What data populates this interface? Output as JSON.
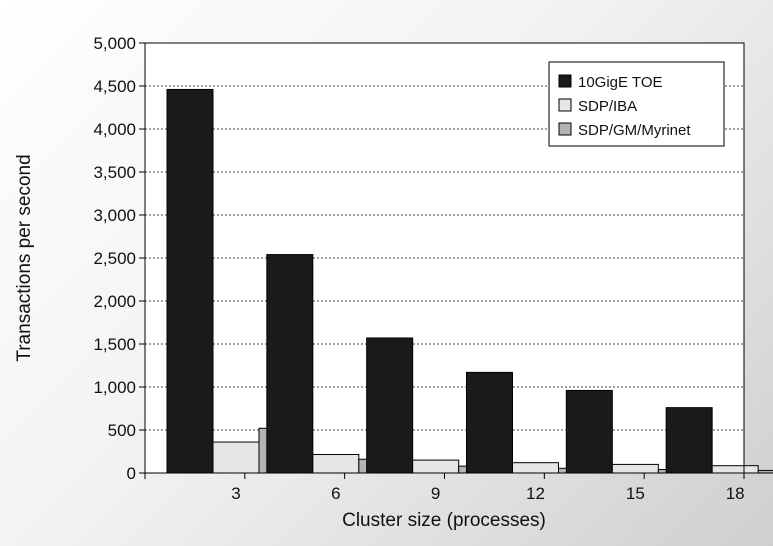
{
  "chart_data": {
    "type": "bar",
    "categories": [
      "3",
      "6",
      "9",
      "12",
      "15",
      "18"
    ],
    "series": [
      {
        "name": "10GigE TOE",
        "color": "#1a1a1a",
        "values": [
          4460,
          2540,
          1570,
          1170,
          960,
          760
        ]
      },
      {
        "name": "SDP/IBA",
        "color": "#e6e6e6",
        "values": [
          360,
          215,
          150,
          120,
          100,
          85
        ]
      },
      {
        "name": "SDP/GM/Myrinet",
        "color": "#b3b3b3",
        "values": [
          520,
          160,
          80,
          55,
          40,
          30
        ]
      }
    ],
    "xlabel": "Cluster size (processes)",
    "ylabel": "Transactions per second",
    "ylim": [
      0,
      5000
    ],
    "yticks": [
      "0",
      "500",
      "1,000",
      "1,500",
      "2,000",
      "2,500",
      "3,000",
      "3,500",
      "4,000",
      "4,500",
      "5,000"
    ],
    "grid": true,
    "legend_position": "top-right"
  }
}
